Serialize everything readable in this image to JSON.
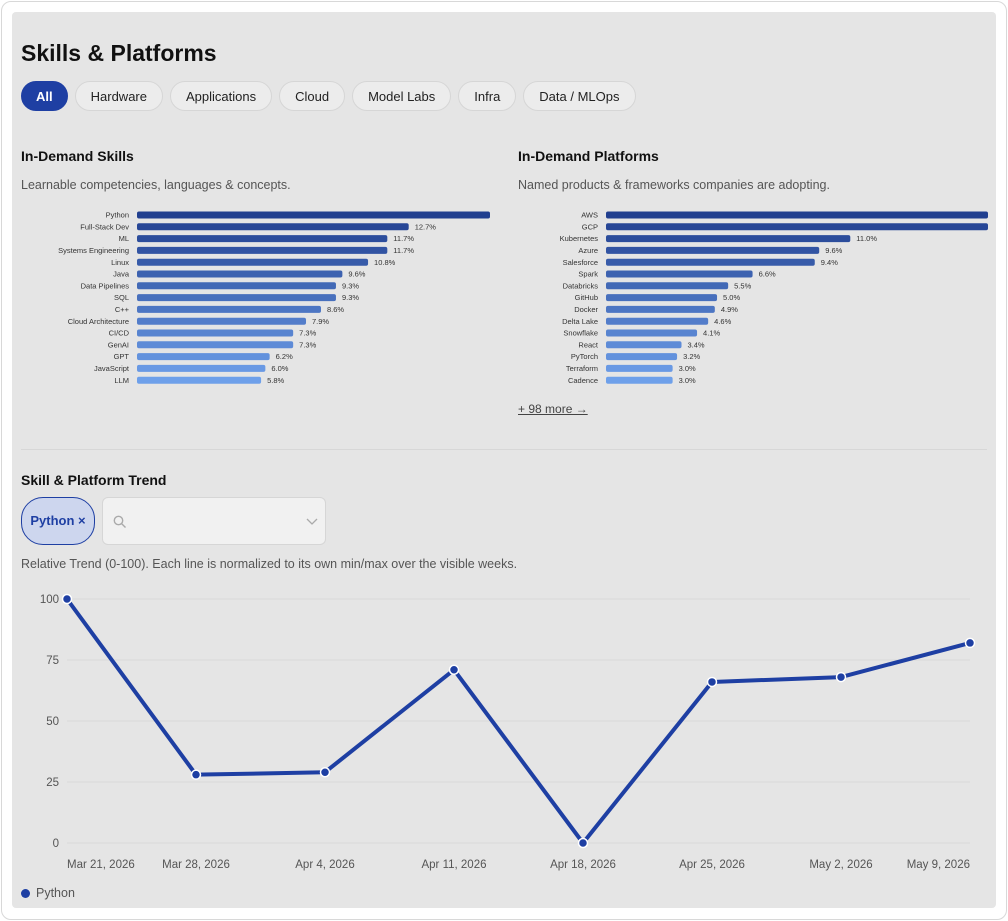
{
  "page": {
    "title": "Skills & Platforms"
  },
  "filters": [
    "All",
    "Hardware",
    "Applications",
    "Cloud",
    "Model Labs",
    "Infra",
    "Data / MLOps"
  ],
  "skills": {
    "title": "In-Demand Skills",
    "description": "Learnable competencies, languages & concepts.",
    "items": [
      {
        "label": "Python",
        "value": 16.5,
        "display": ""
      },
      {
        "label": "Full-Stack Dev",
        "value": 12.7,
        "display": "12.7%"
      },
      {
        "label": "ML",
        "value": 11.7,
        "display": "11.7%"
      },
      {
        "label": "Systems Engineering",
        "value": 11.7,
        "display": "11.7%"
      },
      {
        "label": "Linux",
        "value": 10.8,
        "display": "10.8%"
      },
      {
        "label": "Java",
        "value": 9.6,
        "display": "9.6%"
      },
      {
        "label": "Data Pipelines",
        "value": 9.3,
        "display": "9.3%"
      },
      {
        "label": "SQL",
        "value": 9.3,
        "display": "9.3%"
      },
      {
        "label": "C++",
        "value": 8.6,
        "display": "8.6%"
      },
      {
        "label": "Cloud Architecture",
        "value": 7.9,
        "display": "7.9%"
      },
      {
        "label": "CI/CD",
        "value": 7.3,
        "display": "7.3%"
      },
      {
        "label": "GenAI",
        "value": 7.3,
        "display": "7.3%"
      },
      {
        "label": "GPT",
        "value": 6.2,
        "display": "6.2%"
      },
      {
        "label": "JavaScript",
        "value": 6.0,
        "display": "6.0%"
      },
      {
        "label": "LLM",
        "value": 5.8,
        "display": "5.8%"
      }
    ]
  },
  "platforms": {
    "title": "In-Demand Platforms",
    "description": "Named products & frameworks companies are adopting.",
    "more_link": "+ 98 more →",
    "items": [
      {
        "label": "AWS",
        "value": 17.2,
        "display": ""
      },
      {
        "label": "GCP",
        "value": 17.2,
        "display": ""
      },
      {
        "label": "Kubernetes",
        "value": 11.0,
        "display": "11.0%"
      },
      {
        "label": "Azure",
        "value": 9.6,
        "display": "9.6%"
      },
      {
        "label": "Salesforce",
        "value": 9.4,
        "display": "9.4%"
      },
      {
        "label": "Spark",
        "value": 6.6,
        "display": "6.6%"
      },
      {
        "label": "Databricks",
        "value": 5.5,
        "display": "5.5%"
      },
      {
        "label": "GitHub",
        "value": 5.0,
        "display": "5.0%"
      },
      {
        "label": "Docker",
        "value": 4.9,
        "display": "4.9%"
      },
      {
        "label": "Delta Lake",
        "value": 4.6,
        "display": "4.6%"
      },
      {
        "label": "Snowflake",
        "value": 4.1,
        "display": "4.1%"
      },
      {
        "label": "React",
        "value": 3.4,
        "display": "3.4%"
      },
      {
        "label": "PyTorch",
        "value": 3.2,
        "display": "3.2%"
      },
      {
        "label": "Terraform",
        "value": 3.0,
        "display": "3.0%"
      },
      {
        "label": "Cadence",
        "value": 3.0,
        "display": "3.0%"
      }
    ]
  },
  "trend": {
    "title": "Skill & Platform Trend",
    "chip": "Python ×",
    "caption": "Relative Trend (0-100). Each line is normalized to its own min/max over the visible weeks."
  },
  "colors": {
    "accent": "#1e3fa3",
    "bar_dark": "#213f8f",
    "bar_light": "#6ea0ea"
  },
  "chart_data": {
    "type": "line",
    "x": [
      "Mar 21, 2026",
      "Mar 28, 2026",
      "Apr 4, 2026",
      "Apr 11, 2026",
      "Apr 18, 2026",
      "Apr 25, 2026",
      "May 2, 2026",
      "May 9, 2026"
    ],
    "series": [
      {
        "name": "Python",
        "values": [
          100,
          28,
          29,
          71,
          0,
          66,
          68,
          82
        ]
      }
    ],
    "yticks": [
      0,
      25,
      50,
      75,
      100
    ],
    "ylim": [
      0,
      100
    ],
    "grid": true,
    "legend": "bottom-left"
  }
}
